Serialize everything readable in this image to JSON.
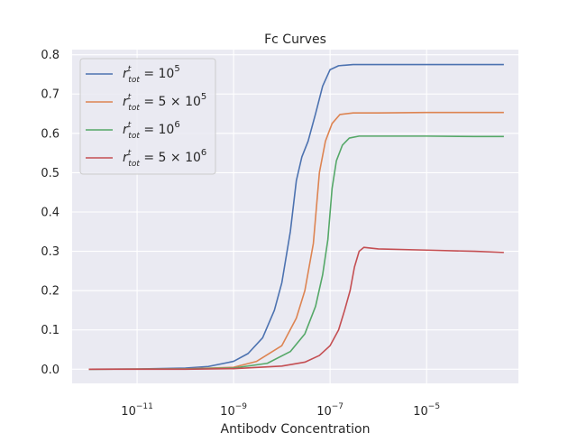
{
  "chart_data": {
    "type": "line",
    "title": "Fc Curves",
    "xlabel": "Antibody Concentration",
    "ylabel": "",
    "x_scale": "log",
    "xlim": [
      4.5e-13,
      0.0008
    ],
    "ylim": [
      -0.036,
      0.813
    ],
    "grid": true,
    "legend_position": "top-left",
    "background_color": "#eaeaf2",
    "grid_color": "#ffffff",
    "x_ticks": [
      {
        "value": 1e-11,
        "mantissa": "10",
        "exponent": "−11"
      },
      {
        "value": 1e-09,
        "mantissa": "10",
        "exponent": "−9"
      },
      {
        "value": 1e-07,
        "mantissa": "10",
        "exponent": "−7"
      },
      {
        "value": 1e-05,
        "mantissa": "10",
        "exponent": "−5"
      }
    ],
    "y_ticks": [
      {
        "value": 0.0,
        "label": "0.0"
      },
      {
        "value": 0.1,
        "label": "0.1"
      },
      {
        "value": 0.2,
        "label": "0.2"
      },
      {
        "value": 0.3,
        "label": "0.3"
      },
      {
        "value": 0.4,
        "label": "0.4"
      },
      {
        "value": 0.5,
        "label": "0.5"
      },
      {
        "value": 0.6,
        "label": "0.6"
      },
      {
        "value": 0.7,
        "label": "0.7"
      },
      {
        "value": 0.8,
        "label": "0.8"
      }
    ],
    "series": [
      {
        "name_parts": {
          "coef": "",
          "base": "10",
          "exp": "5"
        },
        "color": "#4c72b0",
        "points": [
          [
            1e-12,
            0.0
          ],
          [
            1e-11,
            0.0005
          ],
          [
            1e-10,
            0.003
          ],
          [
            3e-10,
            0.007
          ],
          [
            1e-09,
            0.02
          ],
          [
            2e-09,
            0.04
          ],
          [
            4e-09,
            0.08
          ],
          [
            7e-09,
            0.15
          ],
          [
            1e-08,
            0.22
          ],
          [
            1.5e-08,
            0.35
          ],
          [
            2e-08,
            0.48
          ],
          [
            2.6e-08,
            0.54
          ],
          [
            3.5e-08,
            0.58
          ],
          [
            5e-08,
            0.65
          ],
          [
            7e-08,
            0.72
          ],
          [
            1e-07,
            0.762
          ],
          [
            1.5e-07,
            0.772
          ],
          [
            3e-07,
            0.775
          ],
          [
            1e-06,
            0.775
          ],
          [
            1e-05,
            0.775
          ],
          [
            0.0001,
            0.775
          ],
          [
            0.0004,
            0.775
          ]
        ]
      },
      {
        "name_parts": {
          "coef": "5 × ",
          "base": "10",
          "exp": "5"
        },
        "color": "#dd8452",
        "points": [
          [
            1e-12,
            0.0
          ],
          [
            1e-10,
            0.0008
          ],
          [
            1e-09,
            0.005
          ],
          [
            3e-09,
            0.02
          ],
          [
            1e-08,
            0.06
          ],
          [
            2e-08,
            0.13
          ],
          [
            3e-08,
            0.2
          ],
          [
            4.5e-08,
            0.32
          ],
          [
            6e-08,
            0.5
          ],
          [
            8e-08,
            0.58
          ],
          [
            1.1e-07,
            0.625
          ],
          [
            1.6e-07,
            0.648
          ],
          [
            3e-07,
            0.652
          ],
          [
            1e-06,
            0.652
          ],
          [
            1e-05,
            0.653
          ],
          [
            0.0001,
            0.653
          ],
          [
            0.0004,
            0.653
          ]
        ]
      },
      {
        "name_parts": {
          "coef": "",
          "base": "10",
          "exp": "6"
        },
        "color": "#55a868",
        "points": [
          [
            1e-12,
            0.0
          ],
          [
            1e-10,
            0.0005
          ],
          [
            1e-09,
            0.003
          ],
          [
            5e-09,
            0.015
          ],
          [
            1.5e-08,
            0.045
          ],
          [
            3e-08,
            0.09
          ],
          [
            5e-08,
            0.16
          ],
          [
            7e-08,
            0.24
          ],
          [
            9e-08,
            0.33
          ],
          [
            1.1e-07,
            0.46
          ],
          [
            1.35e-07,
            0.53
          ],
          [
            1.8e-07,
            0.57
          ],
          [
            2.5e-07,
            0.588
          ],
          [
            4e-07,
            0.593
          ],
          [
            1e-06,
            0.593
          ],
          [
            1e-05,
            0.593
          ],
          [
            0.0001,
            0.592
          ],
          [
            0.0004,
            0.592
          ]
        ]
      },
      {
        "name_parts": {
          "coef": "5 × ",
          "base": "10",
          "exp": "6"
        },
        "color": "#c44e52",
        "points": [
          [
            1e-12,
            0.0
          ],
          [
            1e-10,
            0.0
          ],
          [
            1e-09,
            0.0015
          ],
          [
            1e-08,
            0.008
          ],
          [
            3e-08,
            0.018
          ],
          [
            6e-08,
            0.035
          ],
          [
            1e-07,
            0.06
          ],
          [
            1.5e-07,
            0.1
          ],
          [
            2e-07,
            0.15
          ],
          [
            2.6e-07,
            0.2
          ],
          [
            3.2e-07,
            0.26
          ],
          [
            4e-07,
            0.3
          ],
          [
            5e-07,
            0.31
          ],
          [
            7e-07,
            0.308
          ],
          [
            1e-06,
            0.306
          ],
          [
            1e-05,
            0.303
          ],
          [
            0.0001,
            0.3
          ],
          [
            0.0004,
            0.297
          ]
        ]
      }
    ]
  }
}
